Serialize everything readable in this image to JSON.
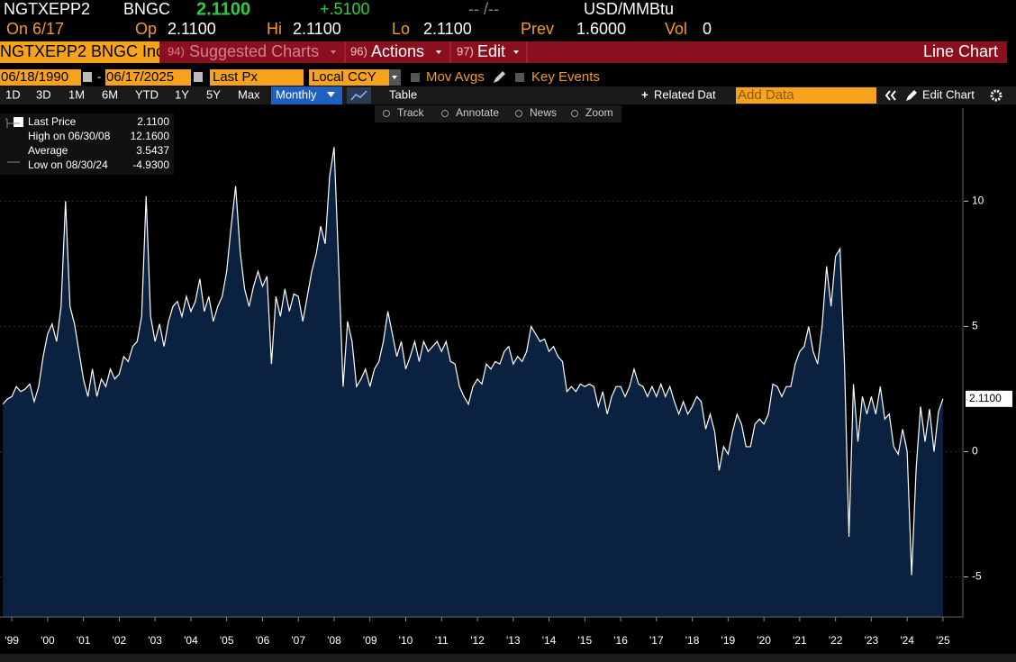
{
  "header": {
    "ticker": "NGTXEPP2",
    "source": "BNGC",
    "price": "2.1100",
    "change": "+.5100",
    "time": "-- /--",
    "unit": "USD/MMBtu"
  },
  "quote": {
    "date": "On 6/17",
    "open_label": "Op",
    "open": "2.1100",
    "high_label": "Hi",
    "high": "2.1100",
    "low_label": "Lo",
    "low": "2.1100",
    "prev_label": "Prev",
    "prev": "1.6000",
    "vol_label": "Vol",
    "vol": "0"
  },
  "menu": {
    "security": "NGTXEPP2 BNGC Inc",
    "items": [
      {
        "num": "94)",
        "label": "Suggested Charts"
      },
      {
        "num": "96)",
        "label": "Actions"
      },
      {
        "num": "97)",
        "label": "Edit"
      }
    ],
    "chart_type": "Line Chart"
  },
  "controls": {
    "start": "06/18/1990",
    "end": "06/17/2025",
    "field": "Last Px",
    "currency": "Local CCY",
    "mov_avgs": "Mov Avgs",
    "key_events": "Key Events"
  },
  "toolbar": {
    "periods": [
      "1D",
      "3D",
      "1M",
      "6M",
      "YTD",
      "1Y",
      "5Y",
      "Max"
    ],
    "frequency": "Monthly",
    "table": "Table",
    "related": "Related Dat",
    "add_data": "Add Data",
    "edit_chart": "Edit Chart"
  },
  "tools": [
    "Track",
    "Annotate",
    "News",
    "Zoom"
  ],
  "chart_data": {
    "type": "line",
    "last_label": "2.1100",
    "stats": [
      {
        "label": "High on 06/30/08",
        "value": "12.1600"
      },
      {
        "label": "Average",
        "value": "3.5437"
      },
      {
        "label": "Low on 08/30/24",
        "value": "-4.9300"
      }
    ],
    "x": [
      1999.25,
      1999.375,
      1999.5,
      1999.625,
      1999.75,
      1999.875,
      2000,
      2000.125,
      2000.25,
      2000.375,
      2000.5,
      2000.625,
      2000.75,
      2000.875,
      2001,
      2001.125,
      2001.25,
      2001.375,
      2001.5,
      2001.625,
      2001.75,
      2001.875,
      2002,
      2002.125,
      2002.25,
      2002.375,
      2002.5,
      2002.625,
      2002.75,
      2002.875,
      2003,
      2003.125,
      2003.25,
      2003.375,
      2003.5,
      2003.625,
      2003.75,
      2003.875,
      2004,
      2004.125,
      2004.25,
      2004.375,
      2004.5,
      2004.625,
      2004.75,
      2004.875,
      2005,
      2005.125,
      2005.25,
      2005.375,
      2005.5,
      2005.625,
      2005.75,
      2005.875,
      2006,
      2006.125,
      2006.25,
      2006.375,
      2006.5,
      2006.625,
      2006.75,
      2006.875,
      2007,
      2007.125,
      2007.25,
      2007.375,
      2007.5,
      2007.625,
      2007.75,
      2007.875,
      2008,
      2008.125,
      2008.25,
      2008.375,
      2008.5,
      2008.625,
      2008.75,
      2008.875,
      2009,
      2009.125,
      2009.25,
      2009.375,
      2009.5,
      2009.625,
      2009.75,
      2009.875,
      2010,
      2010.125,
      2010.25,
      2010.375,
      2010.5,
      2010.625,
      2010.75,
      2010.875,
      2011,
      2011.125,
      2011.25,
      2011.375,
      2011.5,
      2011.625,
      2011.75,
      2011.875,
      2012,
      2012.125,
      2012.25,
      2012.375,
      2012.5,
      2012.625,
      2012.75,
      2012.875,
      2013,
      2013.125,
      2013.25,
      2013.375,
      2013.5,
      2013.625,
      2013.75,
      2013.875,
      2014,
      2014.125,
      2014.25,
      2014.375,
      2014.5,
      2014.625,
      2014.75,
      2014.875,
      2015,
      2015.125,
      2015.25,
      2015.375,
      2015.5,
      2015.625,
      2015.75,
      2015.875,
      2016,
      2016.125,
      2016.25,
      2016.375,
      2016.5,
      2016.625,
      2016.75,
      2016.875,
      2017,
      2017.125,
      2017.25,
      2017.375,
      2017.5,
      2017.625,
      2017.75,
      2017.875,
      2018,
      2018.125,
      2018.25,
      2018.375,
      2018.5,
      2018.625,
      2018.75,
      2018.875,
      2019,
      2019.125,
      2019.25,
      2019.375,
      2019.5,
      2019.625,
      2019.75,
      2019.875,
      2020,
      2020.125,
      2020.25,
      2020.375,
      2020.5,
      2020.625,
      2020.75,
      2020.875,
      2021,
      2021.125,
      2021.25,
      2021.375,
      2021.5,
      2021.625,
      2021.75,
      2021.875,
      2022,
      2022.125,
      2022.25,
      2022.375,
      2022.5,
      2022.625,
      2022.75,
      2022.875,
      2023,
      2023.125,
      2023.25,
      2023.375,
      2023.5,
      2023.625,
      2023.75,
      2023.875,
      2024,
      2024.125,
      2024.25,
      2024.375,
      2024.5,
      2024.625,
      2024.75,
      2024.875,
      2025,
      2025.125,
      2025.25,
      2025.375,
      2025.5
    ],
    "series": [
      {
        "name": "Last Price",
        "color": "#ffffff",
        "fill": "#0b2140",
        "values": [
          1.9,
          2.1,
          2.2,
          2.6,
          2.4,
          2.5,
          2.7,
          2.0,
          2.6,
          3.8,
          4.7,
          5.1,
          4.4,
          5.8,
          10.0,
          5.8,
          5.1,
          4.0,
          2.9,
          2.2,
          3.3,
          2.2,
          2.9,
          2.6,
          3.3,
          2.9,
          3.1,
          3.8,
          3.6,
          4.2,
          4.4,
          5.4,
          10.2,
          5.4,
          4.4,
          5.1,
          4.2,
          5.2,
          5.8,
          6.0,
          5.4,
          6.2,
          5.6,
          6.0,
          6.9,
          5.6,
          6.2,
          5.2,
          5.8,
          6.2,
          7.2,
          9.0,
          10.6,
          8.0,
          6.5,
          5.8,
          6.6,
          7.2,
          6.6,
          7.0,
          3.5,
          6.2,
          5.4,
          6.5,
          5.6,
          6.3,
          6.2,
          5.2,
          6.2,
          7.2,
          7.9,
          9.0,
          8.3,
          11.0,
          12.16,
          7.5,
          2.6,
          5.2,
          4.4,
          2.6,
          2.9,
          3.3,
          2.6,
          3.3,
          3.6,
          4.4,
          5.6,
          4.7,
          3.8,
          4.4,
          3.3,
          3.8,
          4.4,
          3.6,
          4.4,
          4.0,
          4.2,
          4.4,
          4.0,
          4.4,
          3.6,
          3.5,
          2.6,
          2.2,
          1.9,
          2.6,
          2.9,
          2.7,
          3.5,
          3.3,
          3.6,
          3.5,
          4.0,
          4.2,
          3.5,
          3.8,
          3.6,
          4.0,
          5.0,
          4.7,
          4.4,
          4.5,
          4.0,
          4.2,
          3.8,
          3.6,
          2.4,
          2.6,
          2.4,
          2.7,
          2.6,
          2.7,
          2.6,
          1.8,
          2.4,
          1.5,
          2.2,
          2.6,
          2.6,
          2.2,
          2.6,
          3.3,
          2.7,
          2.6,
          2.2,
          2.6,
          2.2,
          2.7,
          2.2,
          2.6,
          2.0,
          1.5,
          2.0,
          1.5,
          1.8,
          2.2,
          2.0,
          0.9,
          1.5,
          0.8,
          -0.75,
          0.2,
          -0.1,
          0.8,
          1.5,
          1.1,
          0.2,
          0.2,
          1.1,
          1.3,
          1.1,
          1.5,
          2.7,
          2.6,
          2.2,
          2.6,
          2.6,
          3.5,
          4.0,
          4.2,
          5.0,
          4.0,
          3.5,
          5.0,
          7.4,
          5.8,
          7.8,
          8.1,
          3.5,
          -3.4,
          2.7,
          0.4,
          2.2,
          1.5,
          2.2,
          1.5,
          2.6,
          1.3,
          1.5,
          0.2,
          -0.1,
          0.9,
          0.0,
          -4.93,
          -0.7,
          1.8,
          0.4,
          1.7,
          0.0,
          1.6,
          2.11
        ]
      }
    ],
    "xlim": [
      1999.17,
      2026.03
    ],
    "xticks": [
      {
        "value": 1999.5,
        "label": "'99"
      },
      {
        "value": 2000.5,
        "label": "'00"
      },
      {
        "value": 2001.5,
        "label": "'01"
      },
      {
        "value": 2002.5,
        "label": "'02"
      },
      {
        "value": 2003.5,
        "label": "'03"
      },
      {
        "value": 2004.5,
        "label": "'04"
      },
      {
        "value": 2005.5,
        "label": "'05"
      },
      {
        "value": 2006.5,
        "label": "'06"
      },
      {
        "value": 2007.5,
        "label": "'07"
      },
      {
        "value": 2008.5,
        "label": "'08"
      },
      {
        "value": 2009.5,
        "label": "'09"
      },
      {
        "value": 2010.5,
        "label": "'10"
      },
      {
        "value": 2011.5,
        "label": "'11"
      },
      {
        "value": 2012.5,
        "label": "'12"
      },
      {
        "value": 2013.5,
        "label": "'13"
      },
      {
        "value": 2014.5,
        "label": "'14"
      },
      {
        "value": 2015.5,
        "label": "'15"
      },
      {
        "value": 2016.5,
        "label": "'16"
      },
      {
        "value": 2017.5,
        "label": "'17"
      },
      {
        "value": 2018.5,
        "label": "'18"
      },
      {
        "value": 2019.5,
        "label": "'19"
      },
      {
        "value": 2020.5,
        "label": "'20"
      },
      {
        "value": 2021.5,
        "label": "'21"
      },
      {
        "value": 2022.5,
        "label": "'22"
      },
      {
        "value": 2023.5,
        "label": "'23"
      },
      {
        "value": 2024.5,
        "label": "'24"
      },
      {
        "value": 2025.5,
        "label": "'25"
      }
    ],
    "ylim": [
      -6.6,
      13
    ],
    "yticks": [
      -5,
      0,
      5,
      10
    ],
    "grid": true
  }
}
